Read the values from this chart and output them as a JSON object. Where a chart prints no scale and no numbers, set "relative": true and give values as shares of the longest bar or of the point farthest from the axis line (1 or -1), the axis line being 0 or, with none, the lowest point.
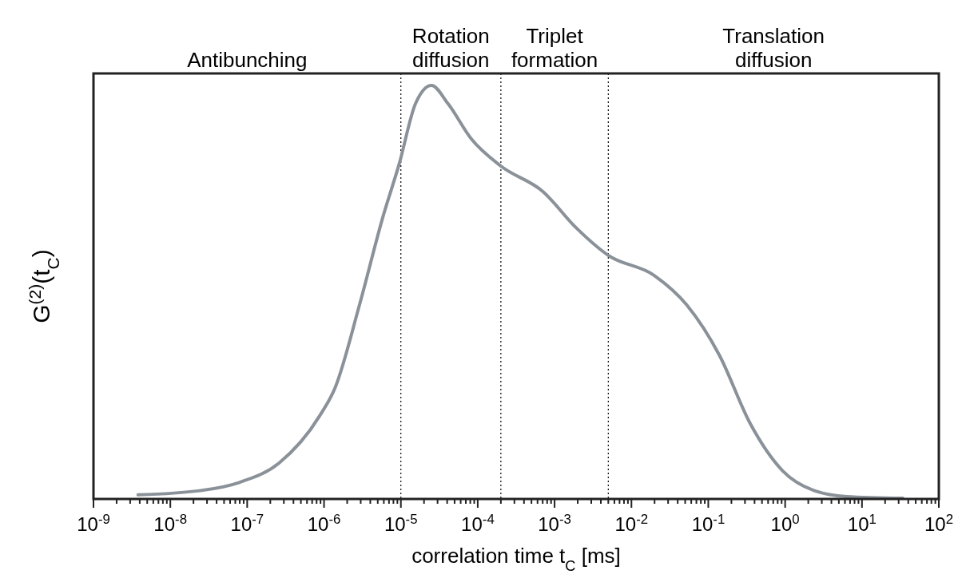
{
  "chart_data": {
    "type": "line",
    "relative": true,
    "log": "x",
    "xlabel": "correlation time t$_{C}$ [ms]",
    "ylabel": "G$^{(2)}$(t$_{C}$)",
    "annotations": [
      "Antibunching",
      "Rotation\ndiffusion",
      "Triplet\nformation",
      "Translation\ndiffusion"
    ],
    "xlim": [
      1e-09,
      100
    ],
    "xticks": [
      {
        "value": 1e-09,
        "label": "10$^{-9}$"
      },
      {
        "value": 1e-08,
        "label": "10$^{-8}$"
      },
      {
        "value": 1e-07,
        "label": "10$^{-7}$"
      },
      {
        "value": 1e-06,
        "label": "10$^{-6}$"
      },
      {
        "value": 1e-05,
        "label": "10$^{-5}$"
      },
      {
        "value": 0.0001,
        "label": "10$^{-4}$"
      },
      {
        "value": 0.001,
        "label": "10$^{-3}$"
      },
      {
        "value": 0.01,
        "label": "10$^{-2}$"
      },
      {
        "value": 0.1,
        "label": "10$^{-1}$"
      },
      {
        "value": 1,
        "label": "10$^{0}$"
      },
      {
        "value": 10,
        "label": "10$^{1}$"
      },
      {
        "value": 100,
        "label": "10$^{2}$"
      }
    ],
    "ref_lines": [
      {
        "axis": "x",
        "value": 1e-05,
        "color": "#000000",
        "line_style": "dotted"
      },
      {
        "axis": "x",
        "value": 0.0002,
        "color": "#000000",
        "line_style": "dotted"
      },
      {
        "axis": "x",
        "value": 0.005,
        "color": "#000000",
        "line_style": "dotted"
      }
    ],
    "series": [
      {
        "color": "#8a9199",
        "x": [
          3.8e-09,
          2.4e-08,
          7.9e-08,
          2.6e-07,
          8.7e-07,
          1.4e-06,
          2.9e-06,
          5.9e-06,
          9.5e-06,
          1.55e-05,
          2.5e-05,
          4.1e-05,
          8.3e-05,
          0.0002,
          0.00071,
          0.0019,
          0.005,
          0.02,
          0.052,
          0.14,
          0.35,
          0.93,
          2.5,
          6.3,
          34
        ],
        "values": [
          0.01,
          0.02,
          0.04,
          0.087,
          0.2,
          0.27,
          0.47,
          0.685,
          0.81,
          0.956,
          1,
          0.956,
          0.87,
          0.805,
          0.743,
          0.656,
          0.589,
          0.54,
          0.47,
          0.347,
          0.183,
          0.068,
          0.019,
          0.006,
          0.002
        ]
      }
    ]
  }
}
